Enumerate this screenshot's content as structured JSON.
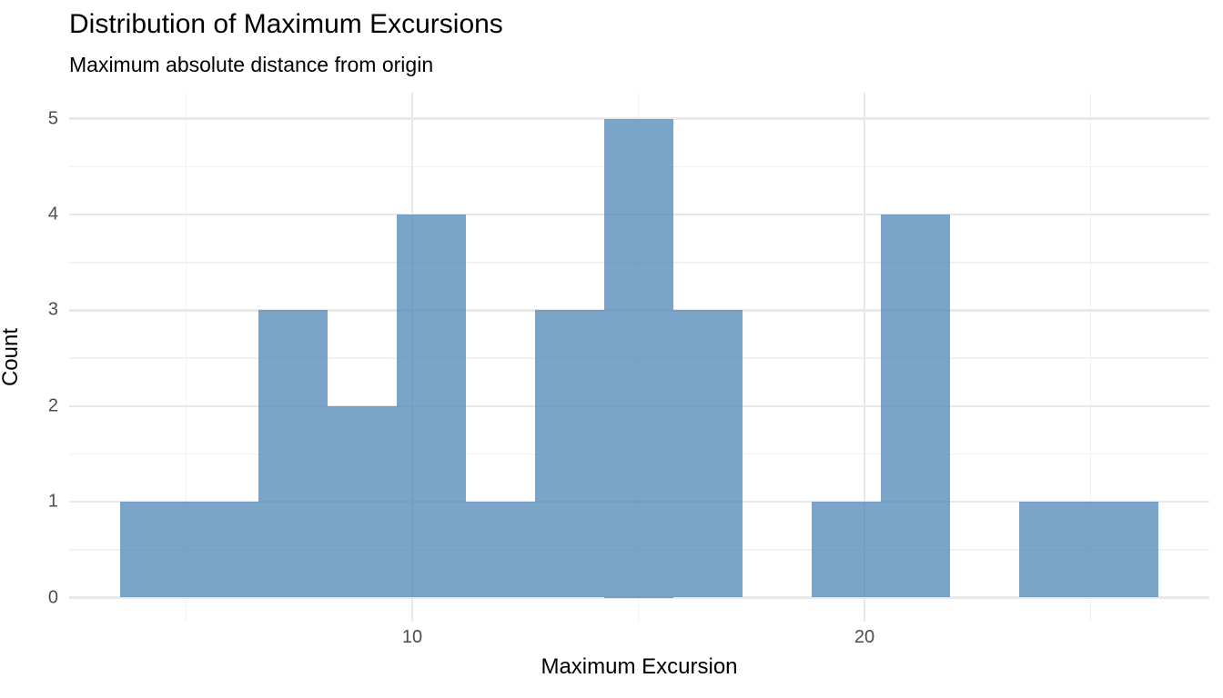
{
  "header": {
    "title": "Distribution of Maximum Excursions",
    "subtitle": "Maximum absolute distance from origin"
  },
  "chart_data": {
    "type": "bar",
    "subtype": "histogram",
    "title": "Distribution of Maximum Excursions",
    "subtitle": "Maximum absolute distance from origin",
    "xlabel": "Maximum Excursion",
    "ylabel": "Count",
    "bins": {
      "start": 3.54,
      "width": 1.53,
      "counts": [
        1,
        1,
        3,
        2,
        4,
        1,
        3,
        5,
        3,
        0,
        1,
        4,
        0,
        1,
        1
      ]
    },
    "total_observations": 30,
    "x_axis": {
      "major_ticks": [
        10,
        20
      ],
      "major_tick_labels": [
        "10",
        "20"
      ],
      "minor_ticks": [
        5,
        15,
        25
      ],
      "range": [
        2.39,
        27.63
      ]
    },
    "y_axis": {
      "major_ticks": [
        0,
        1,
        2,
        3,
        4,
        5
      ],
      "major_tick_labels": [
        "0",
        "1",
        "2",
        "3",
        "4",
        "5"
      ],
      "minor_ticks": [
        0.5,
        1.5,
        2.5,
        3.5,
        4.5
      ],
      "range": [
        -0.25,
        5.25
      ]
    },
    "legend_position": "none",
    "grid": "on",
    "colors": {
      "bar_fill": "#4682B4",
      "bar_alpha": 0.72,
      "grid_major": "#E8E8E8",
      "grid_minor": "#F2F2F2",
      "axis_text": "#4D4D4D",
      "title_text": "#000000",
      "background": "#FFFFFF"
    }
  }
}
